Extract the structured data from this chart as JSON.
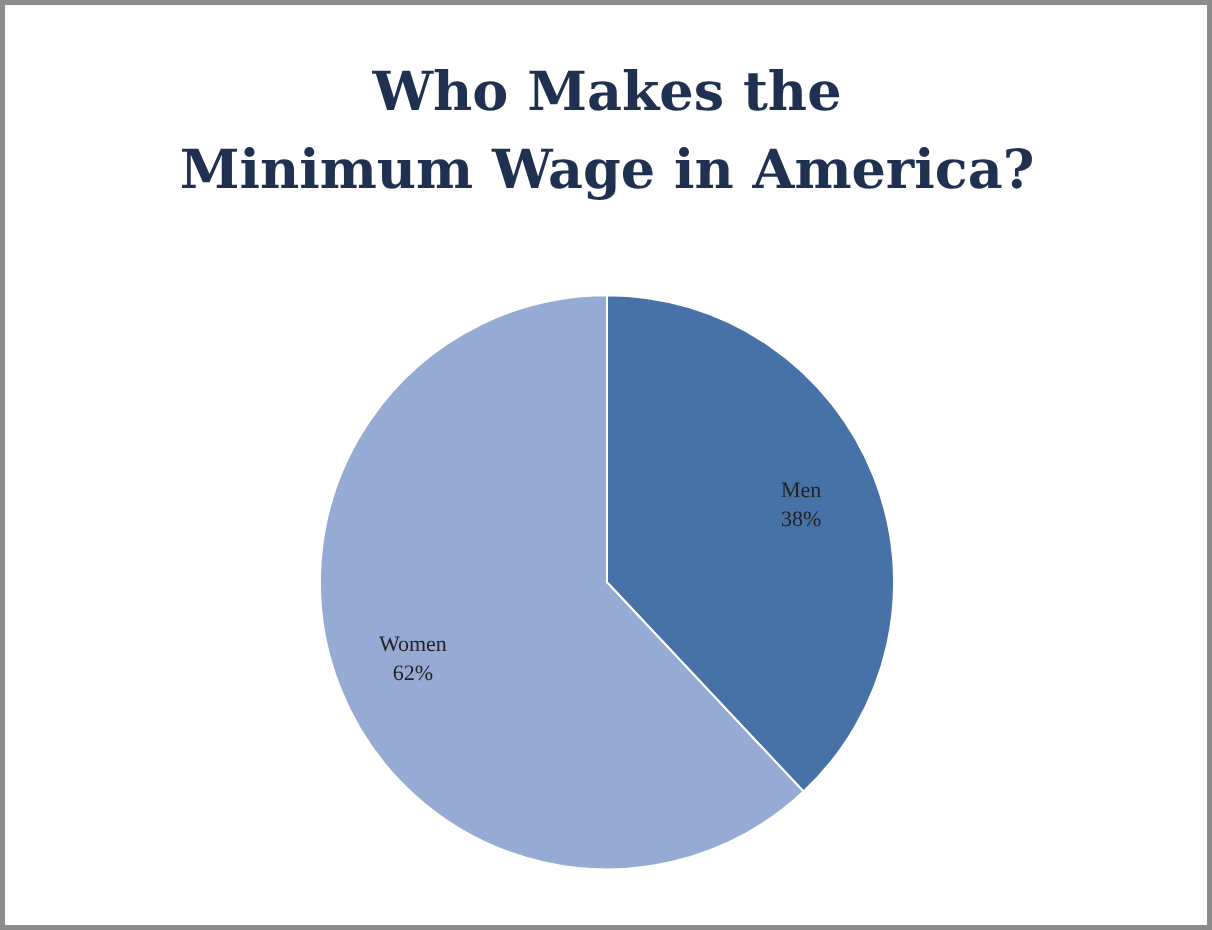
{
  "chart_data": {
    "type": "pie",
    "title": "Who Makes the\nMinimum Wage in America?",
    "categories": [
      "Men",
      "Women"
    ],
    "values": [
      38,
      62
    ],
    "value_labels": [
      "38%",
      "62%"
    ],
    "colors": [
      "#4672a8",
      "#95abd3"
    ],
    "legend": false
  }
}
